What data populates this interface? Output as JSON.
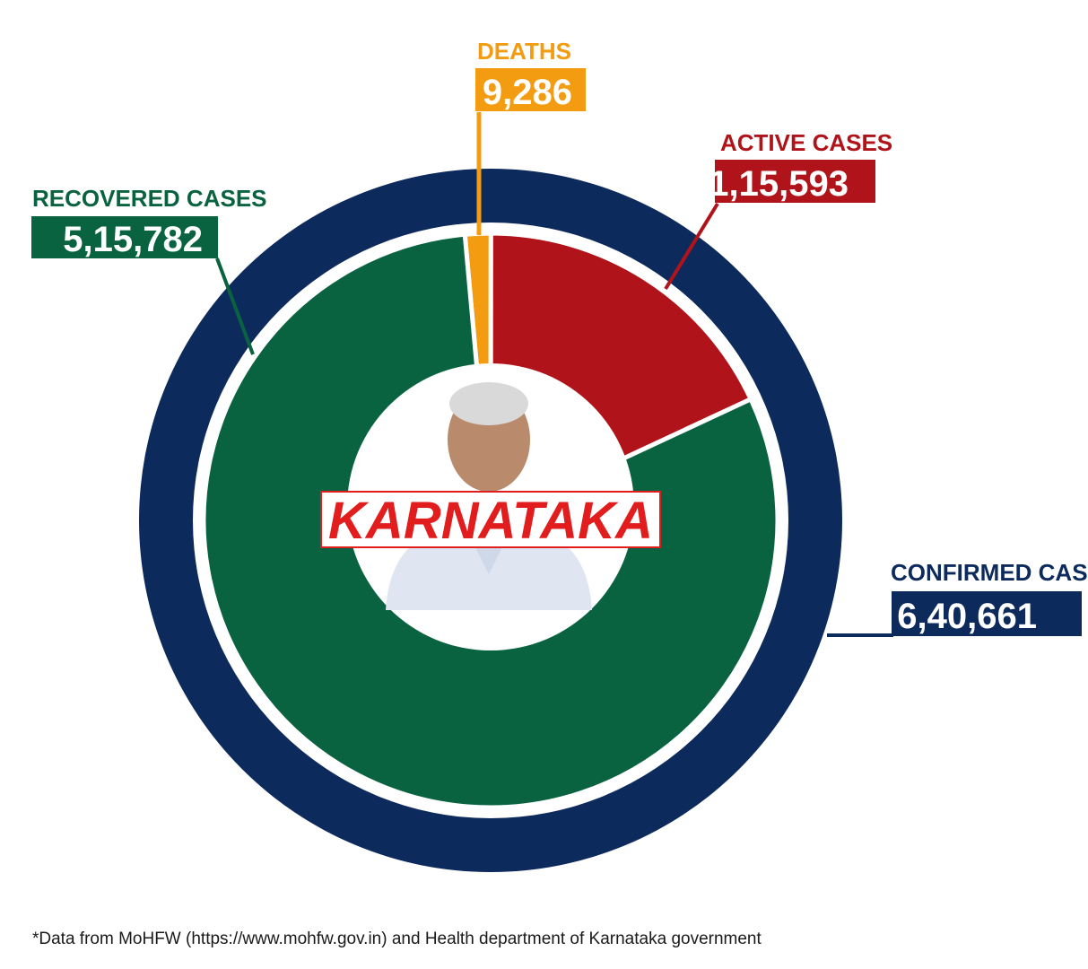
{
  "chart_data": {
    "type": "pie",
    "center_label": "KARNATAKA",
    "outer_ring": {
      "label": "CONFIRMED CASES",
      "value_text": "6,40,661",
      "value": 640661,
      "color": "#0d2a5c"
    },
    "series": [
      {
        "name": "DEATHS",
        "value_text": "9,286",
        "value": 9286,
        "color": "#f39c12"
      },
      {
        "name": "ACTIVE CASES",
        "value_text": "1,15,593",
        "value": 115593,
        "color": "#b01319"
      },
      {
        "name": "RECOVERED CASES",
        "value_text": "5,15,782",
        "value": 515782,
        "color": "#0a6340"
      }
    ]
  },
  "footnote": "*Data from MoHFW (https://www.mohfw.gov.in) and Health department of Karnataka government"
}
